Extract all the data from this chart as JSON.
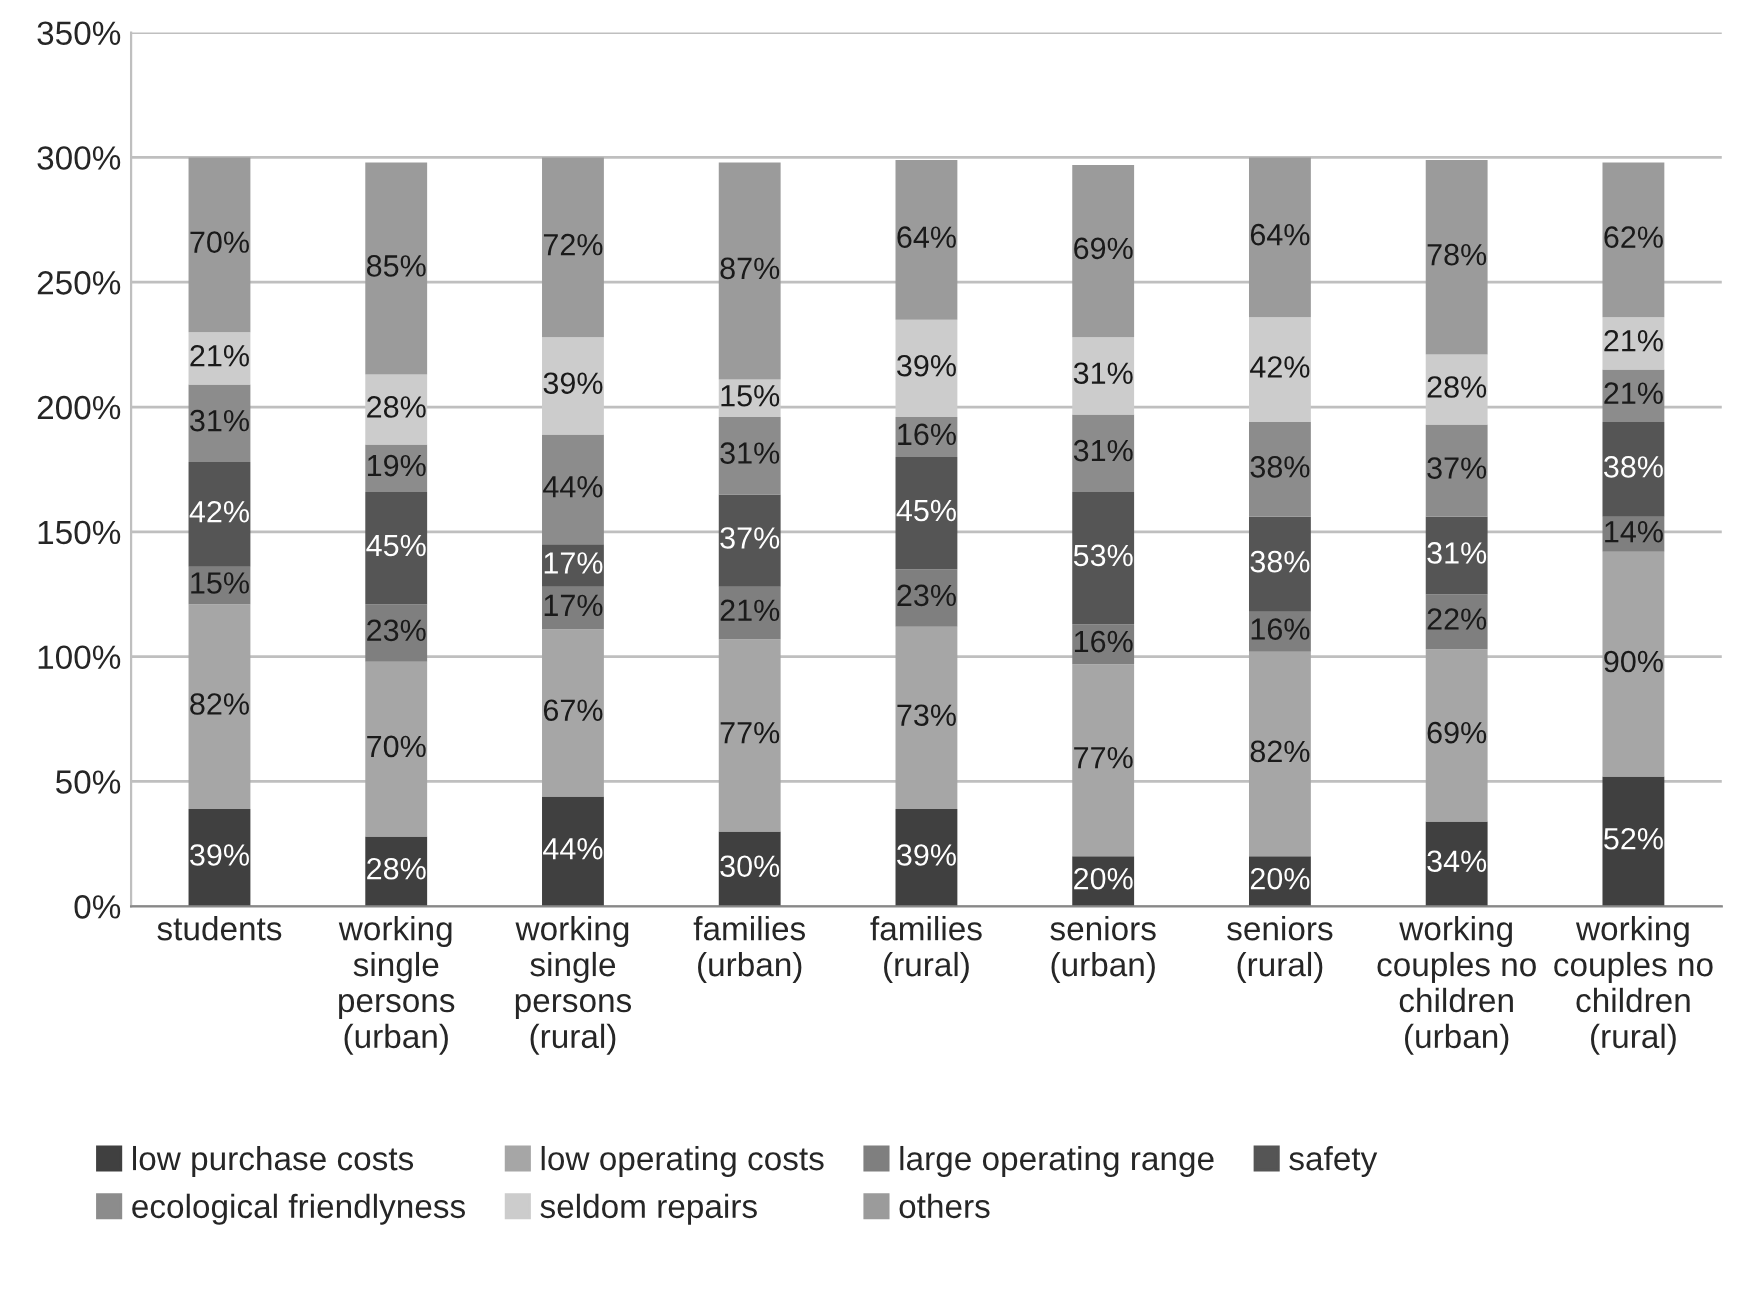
{
  "chart_data": {
    "type": "bar",
    "stacked": true,
    "categories": [
      "students",
      "working\nsingle\npersons\n(urban)",
      "working\nsingle\npersons\n(rural)",
      "families\n(urban)",
      "families\n(rural)",
      "seniors\n(urban)",
      "seniors\n(rural)",
      "working\ncouples no\nchildren\n(urban)",
      "working\ncouples no\nchildren\n(rural)"
    ],
    "series": [
      {
        "name": "low purchase costs",
        "color": "#404040",
        "values": [
          39,
          28,
          44,
          30,
          39,
          20,
          20,
          34,
          52
        ],
        "value_labels": [
          "39%",
          "28%",
          "44%",
          "30%",
          "39%",
          "20%",
          "20%",
          "34%",
          "52%"
        ]
      },
      {
        "name": "low operating costs",
        "color": "#a6a6a6",
        "values": [
          82,
          70,
          67,
          77,
          73,
          77,
          82,
          69,
          90
        ],
        "value_labels": [
          "82%",
          "70%",
          "67%",
          "77%",
          "73%",
          "77%",
          "82%",
          "69%",
          "90%"
        ]
      },
      {
        "name": "large operating range",
        "color": "#7f7f7f",
        "values": [
          15,
          23,
          17,
          21,
          23,
          16,
          16,
          22,
          14
        ],
        "value_labels": [
          "15%",
          "23%",
          "17%",
          "21%",
          "23%",
          "16%",
          "16%",
          "22%",
          "14%"
        ]
      },
      {
        "name": "safety",
        "color": "#555555",
        "values": [
          42,
          45,
          17,
          37,
          45,
          53,
          38,
          31,
          38
        ],
        "value_labels": [
          "42%",
          "45%",
          "17%",
          "37%",
          "45%",
          "53%",
          "38%",
          "31%",
          "38%"
        ]
      },
      {
        "name": "ecological friendlyness",
        "color": "#8c8c8c",
        "values": [
          31,
          19,
          44,
          31,
          16,
          31,
          38,
          37,
          21
        ],
        "value_labels": [
          "31%",
          "19%",
          "44%",
          "31%",
          "16%",
          "31%",
          "38%",
          "37%",
          "21%"
        ]
      },
      {
        "name": "seldom repairs",
        "color": "#cccccc",
        "values": [
          21,
          28,
          39,
          15,
          39,
          31,
          42,
          28,
          21
        ],
        "value_labels": [
          "21%",
          "28%",
          "39%",
          "15%",
          "39%",
          "31%",
          "42%",
          "28%",
          "21%"
        ]
      },
      {
        "name": "others",
        "color": "#9b9b9b",
        "values": [
          70,
          85,
          72,
          87,
          64,
          69,
          64,
          78,
          62
        ],
        "value_labels": [
          "70%",
          "85%",
          "72%",
          "87%",
          "64%",
          "69%",
          "64%",
          "78%",
          "62%"
        ]
      }
    ],
    "ylim": [
      0,
      350
    ],
    "yticks": [
      {
        "value": 0,
        "label": "0%"
      },
      {
        "value": 50,
        "label": "50%"
      },
      {
        "value": 100,
        "label": "100%"
      },
      {
        "value": 150,
        "label": "150%"
      },
      {
        "value": 200,
        "label": "200%"
      },
      {
        "value": 250,
        "label": "250%"
      },
      {
        "value": 300,
        "label": "300%"
      },
      {
        "value": 350,
        "label": "350%"
      }
    ],
    "grid": "y",
    "legend": "bottom"
  }
}
